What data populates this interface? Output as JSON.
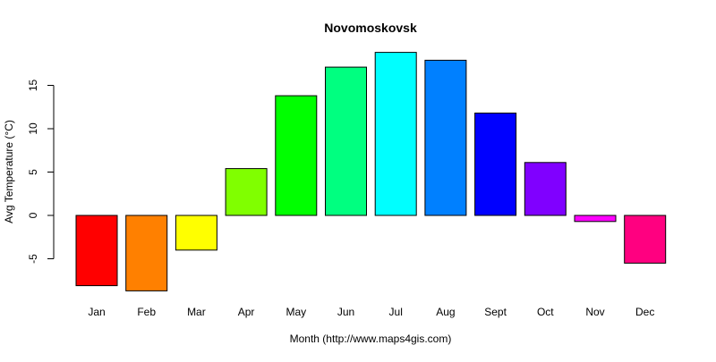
{
  "chart_data": {
    "type": "bar",
    "title": "Novomoskovsk",
    "xlabel": "Month (http://www.maps4gis.com)",
    "ylabel": "Avg Temperature (°C)",
    "categories": [
      "Jan",
      "Feb",
      "Mar",
      "Apr",
      "May",
      "Jun",
      "Jul",
      "Aug",
      "Sept",
      "Oct",
      "Nov",
      "Dec"
    ],
    "values": [
      -8.1,
      -8.7,
      -4.0,
      5.4,
      13.8,
      17.1,
      18.8,
      17.9,
      11.8,
      6.1,
      -0.7,
      -5.5
    ],
    "colors": [
      "#FF0000",
      "#FF8000",
      "#FFFF00",
      "#80FF00",
      "#00FF00",
      "#00FF80",
      "#00FFFF",
      "#0080FF",
      "#0000FF",
      "#8000FF",
      "#FF00FF",
      "#FF0080"
    ],
    "yticks": [
      -5,
      0,
      5,
      10,
      15
    ],
    "ylim": [
      -8.7,
      18.8
    ],
    "grid": false,
    "legend": "none"
  }
}
